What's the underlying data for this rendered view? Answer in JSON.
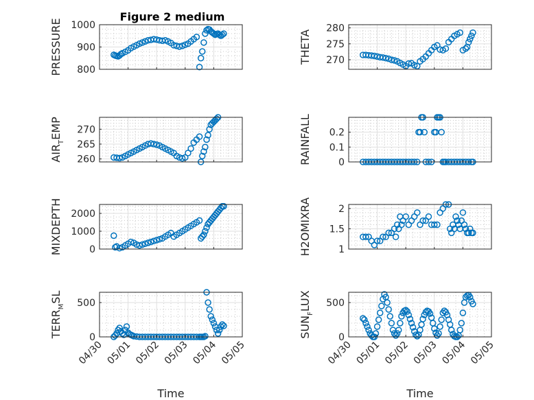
{
  "figure": {
    "title": "Figure 2 medium"
  },
  "chart_data": [
    {
      "type": "scatter",
      "id": "pressure",
      "ylabel": "PRESSURE",
      "ylim": [
        800,
        1000
      ],
      "yticks": [
        800,
        900,
        1000
      ],
      "yticklabels": [
        "800",
        "900",
        "1000"
      ],
      "xlim": [
        0,
        5
      ],
      "xticklabels": [],
      "xlabel": "",
      "grid": "major+minor",
      "series": [
        {
          "x": [
            0.5,
            0.55,
            0.6,
            0.65,
            0.7,
            0.75,
            0.8,
            0.9,
            1.0,
            1.1,
            1.2,
            1.3,
            1.4,
            1.5,
            1.6,
            1.7,
            1.8,
            1.9,
            2.0,
            2.1,
            2.2,
            2.3,
            2.4,
            2.5,
            2.6,
            2.7,
            2.8,
            2.9,
            3.0,
            3.1,
            3.2,
            3.3,
            3.4,
            3.5,
            3.55,
            3.6,
            3.65,
            3.7,
            3.75,
            3.8,
            3.85,
            3.9,
            3.95,
            4.0,
            4.05,
            4.1,
            4.15,
            4.2,
            4.25,
            4.3,
            4.35
          ],
          "y": [
            865,
            862,
            860,
            858,
            862,
            868,
            872,
            878,
            885,
            895,
            902,
            908,
            915,
            920,
            925,
            930,
            932,
            935,
            933,
            930,
            928,
            930,
            925,
            918,
            908,
            905,
            902,
            905,
            910,
            915,
            925,
            935,
            945,
            810,
            850,
            880,
            920,
            960,
            975,
            980,
            978,
            970,
            965,
            960,
            955,
            958,
            960,
            955,
            950,
            955,
            960
          ]
        }
      ]
    },
    {
      "type": "scatter",
      "id": "theta",
      "ylabel": "THETA",
      "ylim": [
        267,
        281
      ],
      "yticks": [
        270,
        275,
        280
      ],
      "yticklabels": [
        "270",
        "275",
        "280"
      ],
      "xlim": [
        0,
        5
      ],
      "xticklabels": [],
      "xlabel": "",
      "grid": "major+minor",
      "series": [
        {
          "x": [
            0.5,
            0.6,
            0.7,
            0.8,
            0.9,
            1.0,
            1.1,
            1.2,
            1.3,
            1.4,
            1.5,
            1.6,
            1.7,
            1.8,
            1.9,
            2.0,
            2.1,
            2.2,
            2.3,
            2.4,
            2.5,
            2.6,
            2.7,
            2.8,
            2.9,
            3.0,
            3.1,
            3.2,
            3.3,
            3.4,
            3.5,
            3.6,
            3.7,
            3.8,
            3.9,
            4.0,
            4.1,
            4.15,
            4.2,
            4.25,
            4.3,
            4.35
          ],
          "y": [
            271.5,
            271.5,
            271.4,
            271.3,
            271.2,
            271.0,
            270.8,
            270.7,
            270.5,
            270.3,
            270.0,
            269.8,
            269.5,
            269.0,
            268.5,
            268.0,
            268.8,
            268.9,
            268.3,
            268.0,
            269.5,
            270.2,
            271.0,
            272.0,
            273.0,
            274.0,
            274.5,
            273.2,
            273.0,
            273.5,
            275.5,
            276.5,
            277.5,
            278.0,
            278.5,
            273.0,
            273.5,
            274.0,
            275.5,
            276.5,
            277.5,
            278.5
          ]
        }
      ]
    },
    {
      "type": "scatter",
      "id": "air_temp",
      "ylabel": "AIR",
      "ylabel_sub": "T",
      "ylabel_rest": "EMP",
      "ylim": [
        259,
        274
      ],
      "yticks": [
        260,
        265,
        270
      ],
      "yticklabels": [
        "260",
        "265",
        "270"
      ],
      "xlim": [
        0,
        5
      ],
      "xticklabels": [],
      "xlabel": "",
      "grid": "major+minor",
      "series": [
        {
          "x": [
            0.5,
            0.6,
            0.7,
            0.8,
            0.9,
            1.0,
            1.1,
            1.2,
            1.3,
            1.4,
            1.5,
            1.6,
            1.7,
            1.8,
            1.9,
            2.0,
            2.1,
            2.2,
            2.3,
            2.4,
            2.5,
            2.6,
            2.7,
            2.8,
            2.9,
            3.0,
            3.1,
            3.2,
            3.3,
            3.4,
            3.5,
            3.55,
            3.6,
            3.65,
            3.7,
            3.75,
            3.8,
            3.85,
            3.9,
            3.95,
            4.0,
            4.05,
            4.1,
            4.15,
            4.2,
            4.25,
            4.3,
            4.35
          ],
          "y": [
            260.5,
            260.4,
            260.3,
            260.5,
            261.0,
            261.5,
            262.0,
            262.5,
            263.0,
            263.5,
            264.0,
            264.5,
            265.0,
            265.2,
            265.0,
            264.8,
            264.5,
            264.0,
            263.5,
            263.0,
            262.5,
            262.0,
            261.0,
            260.5,
            260.2,
            260.5,
            262.0,
            263.5,
            265.5,
            266.5,
            267.5,
            259.0,
            261.0,
            262.5,
            264.0,
            266.5,
            268.0,
            270.0,
            271.5,
            272.0,
            272.5,
            273.0,
            273.5,
            274.0,
            274.5,
            275.0,
            275.5,
            276.0
          ]
        }
      ]
    },
    {
      "type": "scatter",
      "id": "rainfall",
      "ylabel": "RAINFALL",
      "ylim": [
        0,
        0.3
      ],
      "yticks": [
        0,
        0.1,
        0.2
      ],
      "yticklabels": [
        "0",
        "0.1",
        "0.2"
      ],
      "xlim": [
        0,
        5
      ],
      "xticklabels": [],
      "xlabel": "",
      "grid": "major+minor",
      "series": [
        {
          "x": [
            0.5,
            0.6,
            0.7,
            0.8,
            0.9,
            1.0,
            1.1,
            1.2,
            1.3,
            1.4,
            1.5,
            1.6,
            1.7,
            1.8,
            1.9,
            2.0,
            2.1,
            2.2,
            2.3,
            2.4,
            2.45,
            2.5,
            2.55,
            2.6,
            2.65,
            2.7,
            2.8,
            2.9,
            3.0,
            3.05,
            3.1,
            3.15,
            3.2,
            3.25,
            3.3,
            3.35,
            3.4,
            3.5,
            3.6,
            3.7,
            3.8,
            3.9,
            4.0,
            4.1,
            4.2,
            4.3,
            4.35
          ],
          "y": [
            0,
            0,
            0,
            0,
            0,
            0,
            0,
            0,
            0,
            0,
            0,
            0,
            0,
            0,
            0,
            0,
            0,
            0,
            0,
            0,
            0.2,
            0.2,
            0.3,
            0.3,
            0.2,
            0,
            0,
            0,
            0.2,
            0.2,
            0.3,
            0.3,
            0.3,
            0.2,
            0,
            0,
            0,
            0,
            0,
            0,
            0,
            0,
            0,
            0,
            0,
            0,
            0
          ]
        }
      ]
    },
    {
      "type": "scatter",
      "id": "mixdepth",
      "ylabel": "MIXDEPTH",
      "ylim": [
        0,
        2500
      ],
      "yticks": [
        0,
        1000,
        2000
      ],
      "yticklabels": [
        "0",
        "1000",
        "2000"
      ],
      "xlim": [
        0,
        5
      ],
      "xticklabels": [],
      "xlabel": "",
      "grid": "major+minor",
      "series": [
        {
          "x": [
            0.5,
            0.55,
            0.6,
            0.7,
            0.8,
            0.9,
            1.0,
            1.1,
            1.2,
            1.3,
            1.4,
            1.5,
            1.6,
            1.7,
            1.8,
            1.9,
            2.0,
            2.1,
            2.2,
            2.3,
            2.4,
            2.5,
            2.6,
            2.7,
            2.8,
            2.9,
            3.0,
            3.1,
            3.2,
            3.3,
            3.4,
            3.5,
            3.55,
            3.6,
            3.65,
            3.7,
            3.75,
            3.8,
            3.85,
            3.9,
            3.95,
            4.0,
            4.05,
            4.1,
            4.15,
            4.2,
            4.25,
            4.3,
            4.35
          ],
          "y": [
            750,
            100,
            150,
            50,
            100,
            200,
            300,
            400,
            350,
            250,
            200,
            250,
            300,
            350,
            400,
            450,
            500,
            550,
            600,
            700,
            800,
            900,
            700,
            800,
            900,
            1000,
            1100,
            1200,
            1300,
            1400,
            1500,
            1600,
            600,
            700,
            800,
            1000,
            1200,
            1400,
            1500,
            1600,
            1700,
            1800,
            1900,
            2000,
            2100,
            2200,
            2300,
            2400,
            2400
          ]
        }
      ]
    },
    {
      "type": "scatter",
      "id": "h2omixra",
      "ylabel": "H2OMIXRA",
      "ylim": [
        1,
        2.1
      ],
      "yticks": [
        1,
        1.5,
        2
      ],
      "yticklabels": [
        "1",
        "1.5",
        "2"
      ],
      "xlim": [
        0,
        5
      ],
      "xticklabels": [],
      "xlabel": "",
      "grid": "major+minor",
      "series": [
        {
          "x": [
            0.5,
            0.6,
            0.7,
            0.8,
            0.9,
            1.0,
            1.1,
            1.2,
            1.3,
            1.4,
            1.5,
            1.6,
            1.65,
            1.7,
            1.75,
            1.8,
            1.85,
            1.9,
            2.0,
            2.1,
            2.2,
            2.3,
            2.4,
            2.5,
            2.6,
            2.7,
            2.8,
            2.9,
            3.0,
            3.1,
            3.2,
            3.3,
            3.4,
            3.5,
            3.55,
            3.6,
            3.65,
            3.7,
            3.75,
            3.8,
            3.85,
            3.9,
            3.95,
            4.0,
            4.05,
            4.1,
            4.15,
            4.2,
            4.25,
            4.3,
            4.35
          ],
          "y": [
            1.3,
            1.3,
            1.3,
            1.2,
            1.1,
            1.2,
            1.2,
            1.3,
            1.3,
            1.4,
            1.4,
            1.5,
            1.3,
            1.6,
            1.5,
            1.8,
            1.6,
            1.7,
            1.8,
            1.6,
            1.7,
            1.8,
            1.9,
            1.6,
            1.7,
            1.7,
            1.8,
            1.6,
            1.6,
            1.6,
            1.9,
            2.0,
            2.1,
            2.1,
            1.5,
            1.4,
            1.6,
            1.5,
            1.8,
            1.7,
            1.6,
            1.5,
            1.7,
            1.9,
            1.6,
            1.5,
            1.4,
            1.4,
            1.5,
            1.4,
            1.4
          ]
        }
      ]
    },
    {
      "type": "scatter",
      "id": "terr_msl",
      "ylabel": "TERR",
      "ylabel_sub": "M",
      "ylabel_rest": "SL",
      "ylim": [
        0,
        650
      ],
      "yticks": [
        0,
        500
      ],
      "yticklabels": [
        "0",
        "500"
      ],
      "xlim": [
        0,
        5
      ],
      "xticks": [
        0,
        1,
        2,
        3,
        4,
        5
      ],
      "xticklabels": [
        "04/30",
        "05/01",
        "05/02",
        "05/03",
        "05/04",
        "05/05"
      ],
      "xlabel": "Time",
      "grid": "major+minor",
      "series": [
        {
          "x": [
            0.5,
            0.55,
            0.6,
            0.65,
            0.7,
            0.75,
            0.8,
            0.85,
            0.9,
            0.95,
            1.0,
            1.05,
            1.1,
            1.15,
            1.2,
            1.3,
            1.4,
            1.5,
            1.6,
            1.7,
            1.8,
            1.9,
            2.0,
            2.1,
            2.2,
            2.3,
            2.4,
            2.5,
            2.6,
            2.7,
            2.8,
            2.9,
            3.0,
            3.1,
            3.2,
            3.3,
            3.4,
            3.5,
            3.55,
            3.6,
            3.65,
            3.7,
            3.75,
            3.8,
            3.85,
            3.9,
            3.95,
            4.0,
            4.05,
            4.1,
            4.15,
            4.2,
            4.25,
            4.3,
            4.35
          ],
          "y": [
            0,
            20,
            50,
            100,
            130,
            80,
            50,
            30,
            100,
            150,
            60,
            40,
            30,
            20,
            10,
            5,
            0,
            0,
            0,
            0,
            0,
            0,
            0,
            0,
            0,
            0,
            0,
            0,
            0,
            0,
            0,
            0,
            0,
            0,
            0,
            0,
            0,
            0,
            0,
            0,
            0,
            10,
            650,
            500,
            400,
            300,
            250,
            200,
            150,
            100,
            50,
            100,
            150,
            180,
            160
          ]
        }
      ]
    },
    {
      "type": "scatter",
      "id": "sun_flux",
      "ylabel": "SUN",
      "ylabel_sub": "F",
      "ylabel_rest": "LUX",
      "ylim": [
        0,
        650
      ],
      "yticks": [
        0,
        500
      ],
      "yticklabels": [
        "0",
        "500"
      ],
      "xlim": [
        0,
        5
      ],
      "xticks": [
        0,
        1,
        2,
        3,
        4,
        5
      ],
      "xticklabels": [
        "04/30",
        "05/01",
        "05/02",
        "05/03",
        "05/04",
        "05/05"
      ],
      "xlabel": "Time",
      "grid": "major+minor",
      "series": [
        {
          "x": [
            0.5,
            0.55,
            0.6,
            0.65,
            0.7,
            0.75,
            0.8,
            0.85,
            0.9,
            0.95,
            1.0,
            1.05,
            1.1,
            1.15,
            1.2,
            1.25,
            1.3,
            1.35,
            1.4,
            1.45,
            1.5,
            1.55,
            1.6,
            1.65,
            1.7,
            1.75,
            1.8,
            1.85,
            1.9,
            1.95,
            2.0,
            2.05,
            2.1,
            2.15,
            2.2,
            2.25,
            2.3,
            2.35,
            2.4,
            2.45,
            2.5,
            2.55,
            2.6,
            2.65,
            2.7,
            2.75,
            2.8,
            2.85,
            2.9,
            2.95,
            3.0,
            3.05,
            3.1,
            3.15,
            3.2,
            3.25,
            3.3,
            3.35,
            3.4,
            3.45,
            3.5,
            3.55,
            3.6,
            3.65,
            3.7,
            3.75,
            3.8,
            3.85,
            3.9,
            3.95,
            4.0,
            4.05,
            4.1,
            4.15,
            4.2,
            4.25,
            4.3,
            4.35
          ],
          "y": [
            270,
            250,
            200,
            150,
            100,
            50,
            20,
            0,
            0,
            50,
            150,
            250,
            350,
            450,
            550,
            620,
            580,
            500,
            400,
            300,
            200,
            100,
            50,
            20,
            50,
            100,
            200,
            300,
            350,
            380,
            390,
            370,
            320,
            260,
            200,
            140,
            80,
            30,
            10,
            30,
            100,
            180,
            260,
            320,
            360,
            380,
            370,
            340,
            280,
            200,
            120,
            60,
            20,
            50,
            150,
            250,
            350,
            380,
            360,
            320,
            250,
            180,
            100,
            40,
            10,
            0,
            0,
            20,
            100,
            200,
            350,
            500,
            580,
            600,
            610,
            580,
            520,
            480
          ]
        }
      ]
    }
  ]
}
